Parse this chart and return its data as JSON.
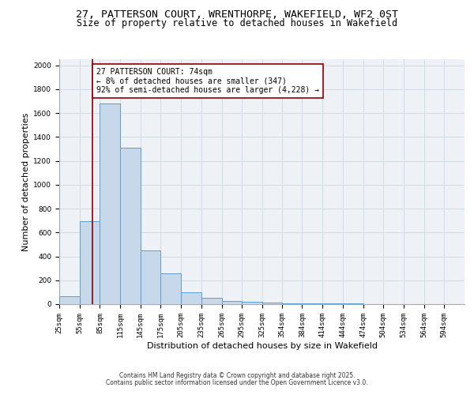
{
  "title_line1": "27, PATTERSON COURT, WRENTHORPE, WAKEFIELD, WF2 0ST",
  "title_line2": "Size of property relative to detached houses in Wakefield",
  "xlabel": "Distribution of detached houses by size in Wakefield",
  "ylabel": "Number of detached properties",
  "bar_edges": [
    25,
    55,
    85,
    115,
    145,
    175,
    205,
    235,
    265,
    295,
    325,
    354,
    384,
    414,
    444,
    474,
    504,
    534,
    564,
    594,
    624
  ],
  "bar_heights": [
    67,
    693,
    1680,
    1310,
    447,
    255,
    100,
    50,
    25,
    20,
    10,
    8,
    5,
    5,
    5,
    3,
    2,
    2,
    1,
    1
  ],
  "bar_facecolor": "#c8d8eb",
  "bar_edgecolor": "#5a9fd4",
  "grid_color": "#d0dce8",
  "background_color": "#eef2f7",
  "vline_x": 74,
  "vline_color": "#8b0000",
  "annotation_text": "27 PATTERSON COURT: 74sqm\n← 8% of detached houses are smaller (347)\n92% of semi-detached houses are larger (4,228) →",
  "annotation_box_color": "#8b0000",
  "annotation_bg": "white",
  "ylim": [
    0,
    2050
  ],
  "yticks": [
    0,
    200,
    400,
    600,
    800,
    1000,
    1200,
    1400,
    1600,
    1800,
    2000
  ],
  "footer_line1": "Contains HM Land Registry data © Crown copyright and database right 2025.",
  "footer_line2": "Contains public sector information licensed under the Open Government Licence v3.0.",
  "title_fontsize": 9.5,
  "subtitle_fontsize": 8.5,
  "ylabel_fontsize": 8,
  "xlabel_fontsize": 8,
  "tick_fontsize": 6.5,
  "annotation_fontsize": 7,
  "footer_fontsize": 5.5
}
